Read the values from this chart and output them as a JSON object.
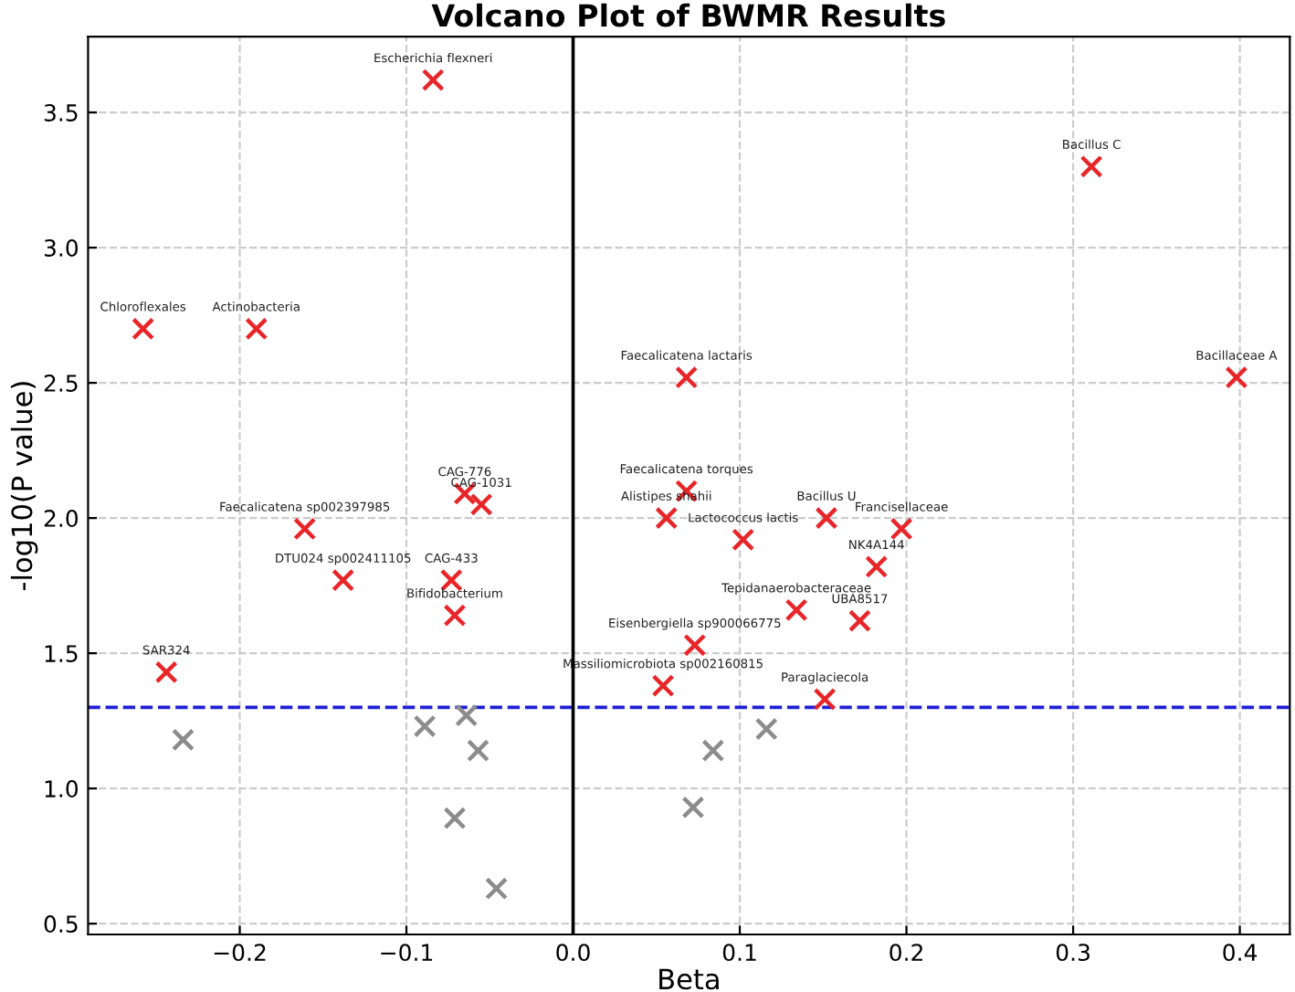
{
  "chart_data": {
    "type": "scatter",
    "title": "Volcano Plot of BWMR Results",
    "xlabel": "Beta",
    "ylabel": "-log10(P value)",
    "marker": "cross",
    "grid": true,
    "legend": false,
    "xlim": [
      -0.291,
      0.43
    ],
    "ylim": [
      0.46,
      3.78
    ],
    "xticks": [
      {
        "value": -0.2,
        "label": "−0.2"
      },
      {
        "value": -0.1,
        "label": "−0.1"
      },
      {
        "value": 0.0,
        "label": "0.0"
      },
      {
        "value": 0.1,
        "label": "0.1"
      },
      {
        "value": 0.2,
        "label": "0.2"
      },
      {
        "value": 0.3,
        "label": "0.3"
      },
      {
        "value": 0.4,
        "label": "0.4"
      }
    ],
    "yticks": [
      {
        "value": 0.5,
        "label": "0.5"
      },
      {
        "value": 1.0,
        "label": "1.0"
      },
      {
        "value": 1.5,
        "label": "1.5"
      },
      {
        "value": 2.0,
        "label": "2.0"
      },
      {
        "value": 2.5,
        "label": "2.5"
      },
      {
        "value": 3.0,
        "label": "3.0"
      },
      {
        "value": 3.5,
        "label": "3.5"
      }
    ],
    "series": [
      {
        "color": "#e8262a",
        "x": [
          -0.084,
          0.311,
          -0.258,
          -0.19,
          0.068,
          0.398,
          0.068,
          -0.065,
          -0.055,
          -0.161,
          0.056,
          0.152,
          0.197,
          0.102,
          0.182,
          -0.138,
          -0.073,
          0.134,
          -0.071,
          0.172,
          0.073,
          -0.244,
          0.054,
          0.151
        ],
        "values": [
          3.62,
          3.3,
          2.7,
          2.7,
          2.52,
          2.52,
          2.1,
          2.09,
          2.05,
          1.96,
          2.0,
          2.0,
          1.96,
          1.92,
          1.82,
          1.77,
          1.77,
          1.66,
          1.64,
          1.62,
          1.53,
          1.43,
          1.38,
          1.33
        ]
      },
      {
        "color": "#8c8c8c",
        "x": [
          -0.234,
          -0.089,
          -0.064,
          -0.057,
          -0.071,
          -0.046,
          0.084,
          0.116,
          0.072
        ],
        "values": [
          1.18,
          1.23,
          1.27,
          1.14,
          0.89,
          0.63,
          1.14,
          1.22,
          0.93
        ]
      }
    ],
    "ref_lines": [
      {
        "axis": "y",
        "value": 1.3,
        "color": "#1f1fd6",
        "line_style": "dashed"
      },
      {
        "axis": "x",
        "value": 0.0,
        "color": "#000000",
        "line_style": "solid"
      }
    ],
    "annotations": [
      {
        "text": "Escherichia flexneri",
        "x": -0.084,
        "y": 3.62
      },
      {
        "text": "Bacillus C",
        "x": 0.311,
        "y": 3.3
      },
      {
        "text": "Chloroflexales",
        "x": -0.258,
        "y": 2.7
      },
      {
        "text": "Actinobacteria",
        "x": -0.19,
        "y": 2.7
      },
      {
        "text": "Faecalicatena lactaris",
        "x": 0.068,
        "y": 2.52
      },
      {
        "text": "Bacillaceae A",
        "x": 0.398,
        "y": 2.52
      },
      {
        "text": "Faecalicatena torques",
        "x": 0.068,
        "y": 2.1
      },
      {
        "text": "CAG-776",
        "x": -0.065,
        "y": 2.09
      },
      {
        "text": "CAG-1031",
        "x": -0.055,
        "y": 2.05
      },
      {
        "text": "Faecalicatena sp002397985",
        "x": -0.161,
        "y": 1.96
      },
      {
        "text": "Alistipes shahii",
        "x": 0.056,
        "y": 2.0
      },
      {
        "text": "Bacillus U",
        "x": 0.152,
        "y": 2.0
      },
      {
        "text": "Francisellaceae",
        "x": 0.197,
        "y": 1.96
      },
      {
        "text": "Lactococcus lactis",
        "x": 0.102,
        "y": 1.92
      },
      {
        "text": "NK4A144",
        "x": 0.182,
        "y": 1.82
      },
      {
        "text": "DTU024 sp002411105",
        "x": -0.138,
        "y": 1.77
      },
      {
        "text": "CAG-433",
        "x": -0.073,
        "y": 1.77
      },
      {
        "text": "Tepidanaerobacteraceae",
        "x": 0.134,
        "y": 1.66
      },
      {
        "text": "Bifidobacterium",
        "x": -0.071,
        "y": 1.64
      },
      {
        "text": "UBA8517",
        "x": 0.172,
        "y": 1.62
      },
      {
        "text": "Eisenbergiella sp900066775",
        "x": 0.073,
        "y": 1.53
      },
      {
        "text": "SAR324",
        "x": -0.244,
        "y": 1.43
      },
      {
        "text": "Massiliomicrobiota sp002160815",
        "x": 0.054,
        "y": 1.38
      },
      {
        "text": "Paraglaciecola",
        "x": 0.151,
        "y": 1.33
      }
    ]
  }
}
